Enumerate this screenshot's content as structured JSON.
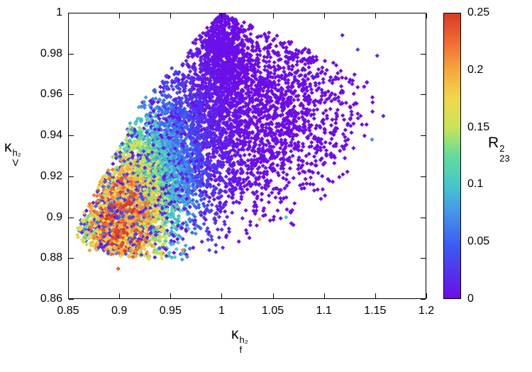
{
  "chart_data": {
    "type": "scatter",
    "title": "",
    "marker": "diamond",
    "xlabel": {
      "base": "κ",
      "sup": "h₂",
      "sub": "f"
    },
    "ylabel": {
      "base": "κ",
      "sup": "h₂",
      "sub": "V"
    },
    "x_range": [
      0.85,
      1.2
    ],
    "y_range": [
      0.86,
      1.0
    ],
    "x_ticks": [
      {
        "v": 0.85,
        "label": "0.85"
      },
      {
        "v": 0.9,
        "label": "0.9"
      },
      {
        "v": 0.95,
        "label": "0.95"
      },
      {
        "v": 1.0,
        "label": "1"
      },
      {
        "v": 1.05,
        "label": "1.05"
      },
      {
        "v": 1.1,
        "label": "1.1"
      },
      {
        "v": 1.15,
        "label": "1.15"
      },
      {
        "v": 1.2,
        "label": "1.2"
      }
    ],
    "y_ticks": [
      {
        "v": 0.86,
        "label": "0.86"
      },
      {
        "v": 0.88,
        "label": "0.88"
      },
      {
        "v": 0.9,
        "label": "0.9"
      },
      {
        "v": 0.92,
        "label": "0.92"
      },
      {
        "v": 0.94,
        "label": "0.94"
      },
      {
        "v": 0.96,
        "label": "0.96"
      },
      {
        "v": 0.98,
        "label": "0.98"
      },
      {
        "v": 1.0,
        "label": "1"
      }
    ],
    "colorbar": {
      "label": {
        "base": "R",
        "sup": "2",
        "sub": "23"
      },
      "range": [
        0,
        0.25
      ],
      "ticks": [
        {
          "v": 0,
          "label": "0"
        },
        {
          "v": 0.05,
          "label": "0.05"
        },
        {
          "v": 0.1,
          "label": "0.1"
        },
        {
          "v": 0.15,
          "label": "0.15"
        },
        {
          "v": 0.2,
          "label": "0.2"
        },
        {
          "v": 0.25,
          "label": "0.25"
        }
      ],
      "palette": [
        [
          0.0,
          "#6d0ce8"
        ],
        [
          0.18,
          "#3b59f2"
        ],
        [
          0.32,
          "#459fe6"
        ],
        [
          0.4,
          "#46c8c8"
        ],
        [
          0.5,
          "#62dc9c"
        ],
        [
          0.6,
          "#c9e45a"
        ],
        [
          0.7,
          "#f0d84c"
        ],
        [
          0.8,
          "#f5a83e"
        ],
        [
          0.9,
          "#ef6c33"
        ],
        [
          1.0,
          "#d93a26"
        ]
      ]
    },
    "point_cloud": {
      "seed": 1337,
      "count": 7600,
      "clusters": [
        {
          "w": 0.4,
          "cx": 0.922,
          "cy": 0.912,
          "sx": 0.03,
          "sy": 0.022,
          "rho": 0.55
        },
        {
          "w": 0.28,
          "cx": 0.985,
          "cy": 0.945,
          "sx": 0.045,
          "sy": 0.03,
          "rho": 0.45
        },
        {
          "w": 0.17,
          "cx": 1.055,
          "cy": 0.95,
          "sx": 0.045,
          "sy": 0.026,
          "rho": 0.25
        },
        {
          "w": 0.08,
          "cx": 1.0,
          "cy": 0.982,
          "sx": 0.013,
          "sy": 0.012,
          "rho": 0.0
        },
        {
          "w": 0.07,
          "cx": 0.893,
          "cy": 0.897,
          "sx": 0.016,
          "sy": 0.01,
          "rho": 0.3
        }
      ],
      "upper_boundary": [
        [
          0.86,
          0.897
        ],
        [
          0.88,
          0.916
        ],
        [
          0.9,
          0.936
        ],
        [
          0.92,
          0.955
        ],
        [
          0.94,
          0.968
        ],
        [
          0.96,
          0.979
        ],
        [
          0.98,
          0.99
        ],
        [
          1.0,
          1.0
        ],
        [
          1.02,
          0.996
        ],
        [
          1.05,
          0.99
        ],
        [
          1.08,
          0.983
        ],
        [
          1.11,
          0.976
        ],
        [
          1.14,
          0.968
        ],
        [
          1.16,
          0.95
        ]
      ],
      "lower_boundary": [
        [
          0.86,
          0.889
        ],
        [
          0.88,
          0.883
        ],
        [
          0.92,
          0.879
        ],
        [
          0.96,
          0.879
        ],
        [
          1.0,
          0.882
        ],
        [
          1.04,
          0.888
        ],
        [
          1.07,
          0.896
        ],
        [
          1.1,
          0.909
        ],
        [
          1.13,
          0.926
        ],
        [
          1.16,
          0.942
        ]
      ],
      "value_model": {
        "cx": 0.9,
        "cy": 0.895,
        "sigma": 0.045,
        "vmax": 0.25,
        "noise_lo": 0.62,
        "noise_hi": 1.12,
        "speckle_frac": 0.22,
        "speckle_scale": 0.3
      },
      "outliers": [
        {
          "x": 0.899,
          "y": 0.8748,
          "v": 0.235
        },
        {
          "x": 0.871,
          "y": 0.8838,
          "v": 0.205
        },
        {
          "x": 0.8875,
          "y": 0.8848,
          "v": 0.2
        },
        {
          "x": 0.862,
          "y": 0.8952,
          "v": 0.17
        },
        {
          "x": 0.8635,
          "y": 0.8925,
          "v": 0.02
        },
        {
          "x": 0.962,
          "y": 0.884,
          "v": 0.21
        },
        {
          "x": 1.037,
          "y": 0.899,
          "v": 0.2
        },
        {
          "x": 1.063,
          "y": 0.9,
          "v": 0.1
        },
        {
          "x": 1.147,
          "y": 0.938,
          "v": 0.07
        },
        {
          "x": 1.158,
          "y": 0.9495,
          "v": 0.015
        },
        {
          "x": 1.152,
          "y": 0.979,
          "v": 0.02
        },
        {
          "x": 1.133,
          "y": 0.982,
          "v": 0.035
        },
        {
          "x": 1.118,
          "y": 0.989,
          "v": 0.01
        }
      ]
    }
  }
}
